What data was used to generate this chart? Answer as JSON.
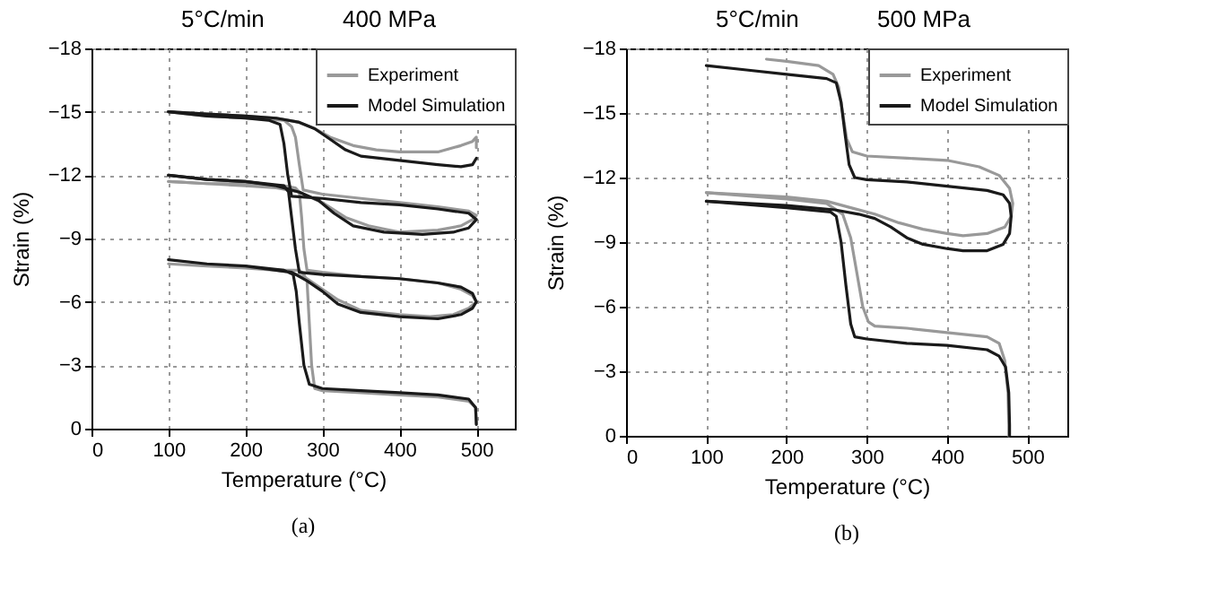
{
  "chart_data": [
    {
      "type": "line",
      "title": "5°C/min",
      "xlabel": "Temperature (°C)",
      "ylabel": "Strain (%)",
      "annotations": [
        "400 MPa",
        "(a)"
      ],
      "xlim": [
        0,
        550
      ],
      "xticks": [
        0,
        100,
        200,
        300,
        400,
        500
      ],
      "ylim": [
        0,
        -18
      ],
      "yticks": [
        0,
        -3,
        -6,
        -9,
        -12,
        -15,
        -18
      ],
      "grid": true,
      "legend": "top right",
      "series": [
        {
          "name": "Experiment",
          "color": "#999999",
          "x": [
            500,
            499,
            490,
            450,
            400,
            350,
            300,
            290,
            286,
            283,
            280,
            276,
            270,
            250,
            200,
            150,
            100,
            150,
            200,
            240,
            260,
            280,
            300,
            320,
            350,
            400,
            440,
            470,
            490,
            500,
            495,
            480,
            450,
            400,
            350,
            300,
            280,
            276,
            273,
            270,
            265,
            250,
            200,
            150,
            100
          ],
          "values": [
            -0.2,
            -1.0,
            -1.3,
            -1.5,
            -1.6,
            -1.7,
            -1.8,
            -1.9,
            -3,
            -5,
            -7,
            -7.3,
            -7.5,
            -7.5,
            -7.6,
            -7.7,
            -7.8,
            -7.7,
            -7.6,
            -7.5,
            -7.4,
            -7.1,
            -6.6,
            -6.1,
            -5.6,
            -5.4,
            -5.3,
            -5.4,
            -5.7,
            -6.0,
            -6.3,
            -6.6,
            -6.9,
            -7.1,
            -7.2,
            -7.4,
            -7.5,
            -8.5,
            -10,
            -11.2,
            -11.4,
            -11.5,
            -11.6,
            -11.6,
            -11.7
          ]
        },
        {
          "color": "#999999",
          "x": [
            100,
            150,
            200,
            240,
            270,
            300,
            330,
            360,
            400,
            450,
            480,
            495,
            500,
            490,
            450,
            400,
            350,
            300,
            275,
            270,
            265,
            260,
            250,
            200,
            150,
            100
          ],
          "values": [
            -11.7,
            -11.6,
            -11.5,
            -11.4,
            -11.2,
            -10.7,
            -10.0,
            -9.6,
            -9.3,
            -9.4,
            -9.6,
            -9.9,
            -10.1,
            -10.3,
            -10.5,
            -10.7,
            -10.9,
            -11.1,
            -11.3,
            -12.5,
            -13.8,
            -14.3,
            -14.6,
            -14.7,
            -14.8,
            -15.0
          ]
        },
        {
          "color": "#999999",
          "x": [
            100,
            150,
            200,
            240,
            270,
            290,
            310,
            340,
            370,
            400,
            450,
            480,
            495,
            500,
            500
          ],
          "values": [
            -15.0,
            -14.9,
            -14.8,
            -14.7,
            -14.5,
            -14.2,
            -13.8,
            -13.4,
            -13.2,
            -13.1,
            -13.1,
            -13.4,
            -13.6,
            -13.8,
            -13.3
          ]
        },
        {
          "name": "Model Simulation",
          "color": "#1a1a1a",
          "x": [
            500,
            499,
            490,
            450,
            400,
            350,
            300,
            283,
            276,
            270,
            266,
            262,
            250,
            200,
            150,
            100,
            150,
            200,
            240,
            260,
            280,
            300,
            320,
            350,
            400,
            450,
            480,
            495,
            500,
            495,
            480,
            450,
            400,
            350,
            300,
            270,
            265,
            260,
            256,
            250,
            200,
            150,
            100
          ],
          "values": [
            -0.2,
            -1.0,
            -1.4,
            -1.6,
            -1.7,
            -1.8,
            -1.9,
            -2.1,
            -3,
            -5,
            -6.5,
            -7.3,
            -7.5,
            -7.7,
            -7.8,
            -8.0,
            -7.8,
            -7.7,
            -7.5,
            -7.4,
            -7.0,
            -6.5,
            -5.9,
            -5.5,
            -5.3,
            -5.2,
            -5.4,
            -5.7,
            -6.0,
            -6.4,
            -6.7,
            -6.9,
            -7.1,
            -7.2,
            -7.3,
            -7.4,
            -8.5,
            -10,
            -11.2,
            -11.5,
            -11.7,
            -11.8,
            -12.0
          ]
        },
        {
          "color": "#1a1a1a",
          "x": [
            100,
            150,
            200,
            240,
            270,
            295,
            315,
            340,
            380,
            430,
            470,
            490,
            500,
            490,
            450,
            400,
            350,
            300,
            260,
            255,
            250,
            245,
            230,
            200,
            150,
            100
          ],
          "values": [
            -12.0,
            -11.8,
            -11.7,
            -11.5,
            -11.2,
            -10.8,
            -10.2,
            -9.6,
            -9.3,
            -9.2,
            -9.3,
            -9.5,
            -9.9,
            -10.2,
            -10.4,
            -10.6,
            -10.7,
            -10.9,
            -11.0,
            -12,
            -13.5,
            -14.4,
            -14.6,
            -14.7,
            -14.8,
            -15.0
          ]
        },
        {
          "color": "#1a1a1a",
          "x": [
            100,
            150,
            200,
            240,
            270,
            290,
            310,
            330,
            350,
            400,
            450,
            480,
            495,
            500
          ],
          "values": [
            -15.0,
            -14.9,
            -14.8,
            -14.7,
            -14.5,
            -14.2,
            -13.7,
            -13.2,
            -12.9,
            -12.7,
            -12.5,
            -12.4,
            -12.5,
            -12.8
          ]
        }
      ]
    },
    {
      "type": "line",
      "title": "5°C/min",
      "xlabel": "Temperature (°C)",
      "ylabel": "Strain (%)",
      "annotations": [
        "500 MPa",
        "(b)"
      ],
      "xlim": [
        0,
        550
      ],
      "xticks": [
        0,
        100,
        200,
        300,
        400,
        500
      ],
      "ylim": [
        0,
        -18
      ],
      "yticks": [
        0,
        -3,
        -6,
        -9,
        -12,
        -15,
        -18
      ],
      "grid": true,
      "legend": "top right",
      "series": [
        {
          "name": "Experiment",
          "color": "#999999",
          "x": [
            175,
            200,
            240,
            258,
            265,
            270,
            275,
            282,
            300,
            350,
            400,
            440,
            465,
            478,
            482,
            480,
            472,
            450,
            420,
            400,
            370,
            340,
            310,
            280,
            250,
            200,
            100
          ],
          "values": [
            -17.5,
            -17.4,
            -17.2,
            -16.8,
            -16.2,
            -15,
            -13.8,
            -13.2,
            -13.0,
            -12.9,
            -12.8,
            -12.5,
            -12.1,
            -11.5,
            -10.8,
            -10.2,
            -9.7,
            -9.4,
            -9.3,
            -9.4,
            -9.6,
            -9.9,
            -10.3,
            -10.6,
            -10.9,
            -11.1,
            -11.3
          ]
        },
        {
          "color": "#999999",
          "x": [
            100,
            200,
            250,
            270,
            280,
            288,
            295,
            302,
            310,
            350,
            400,
            450,
            465,
            472,
            476,
            477,
            477
          ],
          "values": [
            -11.3,
            -11.0,
            -10.8,
            -10.3,
            -9.2,
            -7.5,
            -6,
            -5.3,
            -5.1,
            -5.0,
            -4.8,
            -4.6,
            -4.3,
            -3.5,
            -2.0,
            -0.5,
            0
          ]
        },
        {
          "name": "Model Simulation",
          "color": "#1a1a1a",
          "x": [
            100,
            150,
            200,
            250,
            262,
            268,
            273,
            278,
            285,
            300,
            350,
            400,
            450,
            470,
            478,
            480,
            478,
            470,
            450,
            420,
            400,
            370,
            350,
            330,
            310,
            290,
            260,
            200,
            100
          ],
          "values": [
            -17.2,
            -17.0,
            -16.8,
            -16.6,
            -16.4,
            -15.5,
            -14,
            -12.6,
            -12.0,
            -11.9,
            -11.8,
            -11.6,
            -11.4,
            -11.2,
            -10.8,
            -10.2,
            -9.4,
            -8.9,
            -8.6,
            -8.6,
            -8.7,
            -8.9,
            -9.2,
            -9.7,
            -10.1,
            -10.3,
            -10.5,
            -10.7,
            -10.9
          ]
        },
        {
          "color": "#1a1a1a",
          "x": [
            100,
            200,
            255,
            262,
            268,
            274,
            280,
            285,
            300,
            350,
            400,
            450,
            465,
            473,
            477,
            478,
            478
          ],
          "values": [
            -10.9,
            -10.6,
            -10.4,
            -10.2,
            -9,
            -7,
            -5.2,
            -4.6,
            -4.5,
            -4.3,
            -4.2,
            -4.0,
            -3.7,
            -3.2,
            -2.0,
            -0.5,
            0
          ]
        }
      ]
    }
  ]
}
